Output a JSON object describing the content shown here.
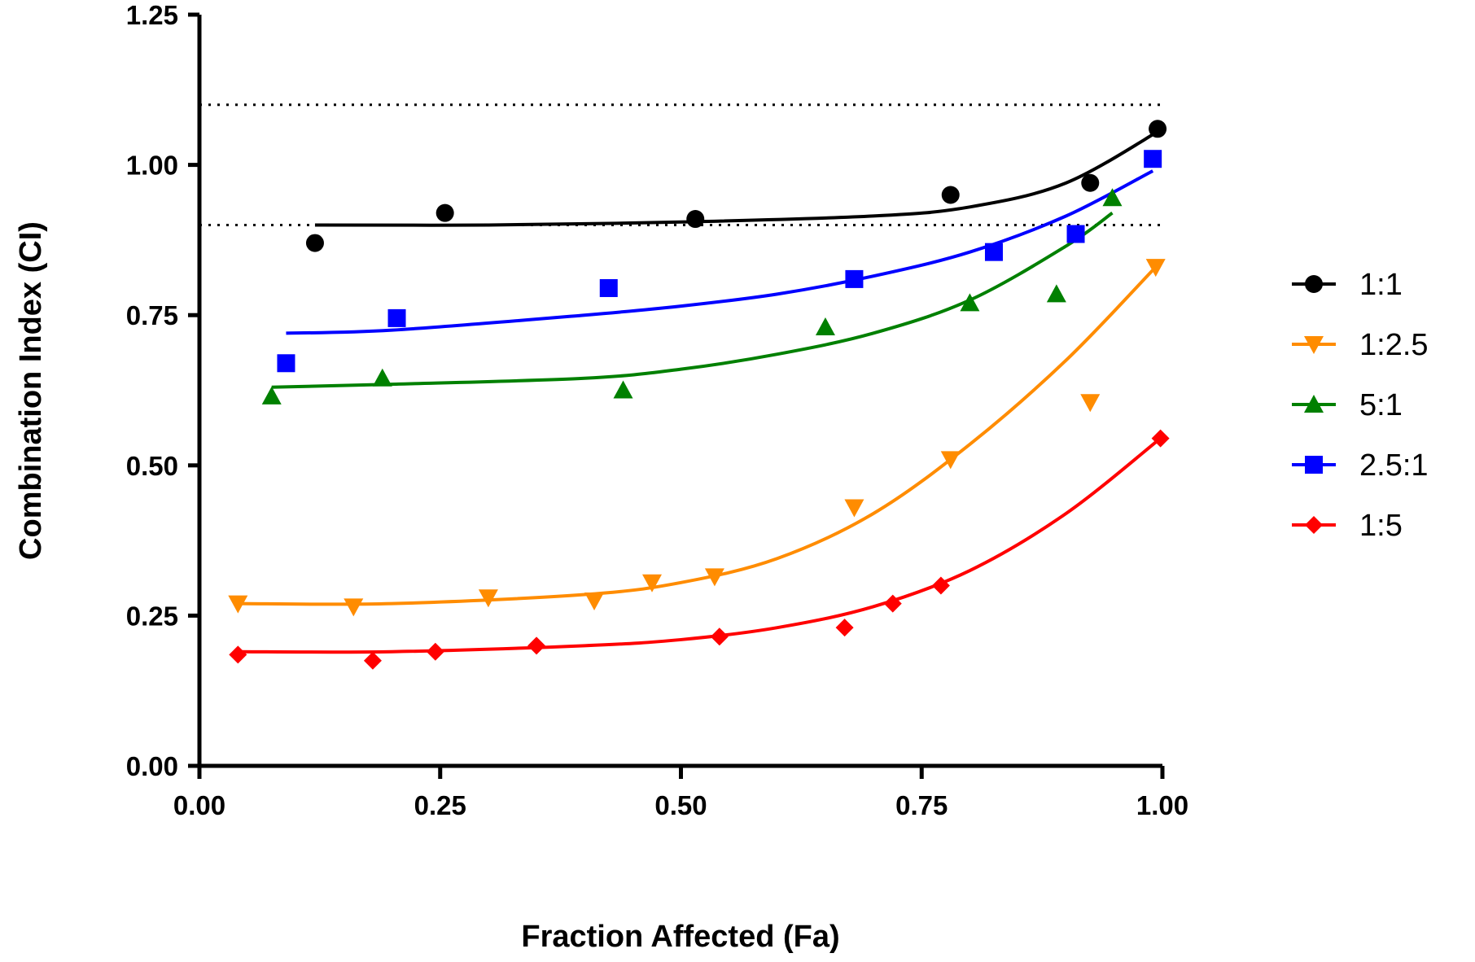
{
  "chart_data": {
    "type": "scatter",
    "title": "",
    "xlabel": "Fraction Affected (Fa)",
    "ylabel": "Combination Index (CI)",
    "xlim": [
      0,
      1
    ],
    "ylim": [
      0,
      1.25
    ],
    "xticks": [
      0,
      0.25,
      0.5,
      0.75,
      1.0
    ],
    "xtick_labels": [
      "0.00",
      "0.25",
      "0.50",
      "0.75",
      "1.00"
    ],
    "yticks": [
      0,
      0.25,
      0.5,
      0.75,
      1.0,
      1.25
    ],
    "ytick_labels": [
      "0.00",
      "0.25",
      "0.50",
      "0.75",
      "1.00",
      "1.25"
    ],
    "grid": false,
    "legend_position": "right",
    "reference_lines": [
      0.9,
      1.1
    ],
    "series": [
      {
        "name": "1:1",
        "color": "#000000",
        "marker": "circle",
        "points": [
          [
            0.12,
            0.87
          ],
          [
            0.255,
            0.92
          ],
          [
            0.515,
            0.91
          ],
          [
            0.78,
            0.95
          ],
          [
            0.925,
            0.97
          ],
          [
            0.995,
            1.06
          ]
        ],
        "fit": [
          [
            0.12,
            0.9
          ],
          [
            0.3,
            0.9
          ],
          [
            0.5,
            0.905
          ],
          [
            0.7,
            0.915
          ],
          [
            0.8,
            0.93
          ],
          [
            0.9,
            0.97
          ],
          [
            1.0,
            1.06
          ]
        ]
      },
      {
        "name": "1:2.5",
        "color": "#ff8c00",
        "marker": "triangle-down",
        "points": [
          [
            0.04,
            0.27
          ],
          [
            0.16,
            0.265
          ],
          [
            0.3,
            0.28
          ],
          [
            0.41,
            0.275
          ],
          [
            0.47,
            0.305
          ],
          [
            0.535,
            0.315
          ],
          [
            0.68,
            0.43
          ],
          [
            0.78,
            0.51
          ],
          [
            0.925,
            0.605
          ],
          [
            0.993,
            0.83
          ]
        ],
        "fit": [
          [
            0.04,
            0.27
          ],
          [
            0.2,
            0.27
          ],
          [
            0.4,
            0.285
          ],
          [
            0.5,
            0.305
          ],
          [
            0.6,
            0.345
          ],
          [
            0.7,
            0.42
          ],
          [
            0.8,
            0.535
          ],
          [
            0.9,
            0.675
          ],
          [
            0.993,
            0.83
          ]
        ]
      },
      {
        "name": "5:1",
        "color": "#008000",
        "marker": "triangle-up",
        "points": [
          [
            0.075,
            0.615
          ],
          [
            0.19,
            0.645
          ],
          [
            0.44,
            0.625
          ],
          [
            0.65,
            0.73
          ],
          [
            0.8,
            0.77
          ],
          [
            0.89,
            0.785
          ],
          [
            0.948,
            0.945
          ]
        ],
        "fit": [
          [
            0.075,
            0.63
          ],
          [
            0.2,
            0.635
          ],
          [
            0.4,
            0.645
          ],
          [
            0.5,
            0.66
          ],
          [
            0.6,
            0.685
          ],
          [
            0.7,
            0.72
          ],
          [
            0.8,
            0.775
          ],
          [
            0.9,
            0.865
          ],
          [
            0.948,
            0.92
          ]
        ]
      },
      {
        "name": "2.5:1",
        "color": "#0000ff",
        "marker": "square",
        "points": [
          [
            0.09,
            0.67
          ],
          [
            0.205,
            0.745
          ],
          [
            0.425,
            0.795
          ],
          [
            0.68,
            0.81
          ],
          [
            0.825,
            0.855
          ],
          [
            0.91,
            0.885
          ],
          [
            0.99,
            1.01
          ]
        ],
        "fit": [
          [
            0.09,
            0.72
          ],
          [
            0.2,
            0.725
          ],
          [
            0.4,
            0.75
          ],
          [
            0.5,
            0.765
          ],
          [
            0.6,
            0.785
          ],
          [
            0.7,
            0.815
          ],
          [
            0.8,
            0.855
          ],
          [
            0.9,
            0.915
          ],
          [
            0.99,
            0.99
          ]
        ]
      },
      {
        "name": "1:5",
        "color": "#ff0000",
        "marker": "diamond",
        "points": [
          [
            0.04,
            0.185
          ],
          [
            0.18,
            0.175
          ],
          [
            0.245,
            0.19
          ],
          [
            0.35,
            0.2
          ],
          [
            0.54,
            0.215
          ],
          [
            0.67,
            0.23
          ],
          [
            0.72,
            0.27
          ],
          [
            0.77,
            0.3
          ],
          [
            0.998,
            0.545
          ]
        ],
        "fit": [
          [
            0.04,
            0.19
          ],
          [
            0.2,
            0.19
          ],
          [
            0.4,
            0.2
          ],
          [
            0.5,
            0.21
          ],
          [
            0.6,
            0.23
          ],
          [
            0.7,
            0.265
          ],
          [
            0.8,
            0.325
          ],
          [
            0.9,
            0.42
          ],
          [
            0.998,
            0.545
          ]
        ]
      }
    ]
  }
}
